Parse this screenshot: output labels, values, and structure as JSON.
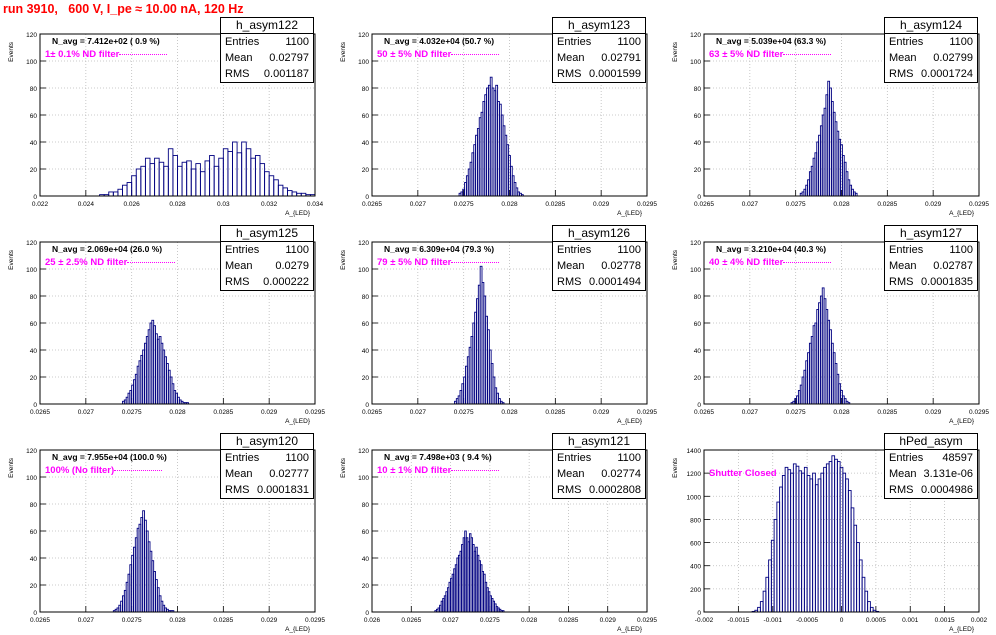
{
  "run_title": "run 3910,   600 V, I_pe ≈ 10.00 nA, 120 Hz",
  "stat_labels": {
    "entries": "Entries",
    "mean": "Mean",
    "rms": "RMS"
  },
  "axis_labels": {
    "y": "Events",
    "x": "A_{LED}"
  },
  "colors": {
    "hist": "#000080",
    "filter": "#ff00ff",
    "title": "#ff0000",
    "grid": "#bbbbbb"
  },
  "chart_data": [
    {
      "type": "bar",
      "name": "h_asym122",
      "navg": "N_avg = 7.412e+02 ( 0.9 %)",
      "filter": "1± 0.1% ND filter",
      "entries": "1100",
      "mean": "0.02797",
      "rms": "0.001187",
      "xlim": [
        0.022,
        0.034
      ],
      "ylim": [
        0,
        120
      ],
      "xticks": [
        0.022,
        0.024,
        0.026,
        0.028,
        0.03,
        0.032,
        0.034
      ],
      "xticklabels": [
        "0.022",
        "0.024",
        "0.026",
        "0.028",
        "0.03",
        "0.032",
        "0.034"
      ],
      "yticks": [
        0,
        20,
        40,
        60,
        80,
        100,
        120
      ],
      "bin_lo": 0.0246,
      "bin_w": 0.0002,
      "values": [
        1,
        1,
        3,
        3,
        5,
        8,
        10,
        15,
        20,
        22,
        28,
        24,
        28,
        25,
        22,
        35,
        30,
        22,
        25,
        26,
        20,
        24,
        18,
        26,
        30,
        22,
        28,
        35,
        33,
        40,
        32,
        40,
        35,
        28,
        30,
        24,
        18,
        15,
        12,
        8,
        6,
        4,
        3,
        2,
        2,
        1,
        1
      ]
    },
    {
      "type": "bar",
      "name": "h_asym123",
      "navg": "N_avg = 4.032e+04 (50.7 %)",
      "filter": "50 ± 5% ND filter",
      "entries": "1100",
      "mean": "0.02791",
      "rms": "0.0001599",
      "xlim": [
        0.0265,
        0.0295
      ],
      "ylim": [
        0,
        120
      ],
      "xticks": [
        0.0265,
        0.027,
        0.0275,
        0.028,
        0.0285,
        0.029,
        0.0295
      ],
      "xticklabels": [
        "0.0265",
        "0.027",
        "0.0275",
        "0.028",
        "0.0285",
        "0.029",
        "0.0295"
      ],
      "yticks": [
        0,
        20,
        40,
        60,
        80,
        100,
        120
      ],
      "bin_lo": 0.02745,
      "bin_w": 2e-05,
      "values": [
        2,
        3,
        5,
        10,
        15,
        20,
        25,
        32,
        38,
        45,
        50,
        58,
        62,
        70,
        75,
        80,
        82,
        88,
        80,
        78,
        82,
        70,
        68,
        60,
        52,
        45,
        38,
        30,
        22,
        15,
        10,
        6,
        3,
        2,
        1
      ]
    },
    {
      "type": "bar",
      "name": "h_asym124",
      "navg": "N_avg = 5.039e+04 (63.3 %)",
      "filter": "63 ± 5% ND filter",
      "entries": "1100",
      "mean": "0.02799",
      "rms": "0.0001724",
      "xlim": [
        0.0265,
        0.0295
      ],
      "ylim": [
        0,
        120
      ],
      "xticks": [
        0.0265,
        0.027,
        0.0275,
        0.028,
        0.0285,
        0.029,
        0.0295
      ],
      "xticklabels": [
        "0.0265",
        "0.027",
        "0.0275",
        "0.028",
        "0.0285",
        "0.029",
        "0.0295"
      ],
      "yticks": [
        0,
        20,
        40,
        60,
        80,
        100,
        120
      ],
      "bin_lo": 0.02755,
      "bin_w": 2e-05,
      "values": [
        2,
        3,
        5,
        8,
        12,
        18,
        22,
        28,
        32,
        40,
        45,
        52,
        60,
        65,
        75,
        85,
        80,
        70,
        62,
        55,
        48,
        42,
        38,
        30,
        25,
        18,
        12,
        8,
        5,
        3,
        2
      ]
    },
    {
      "type": "bar",
      "name": "h_asym125",
      "navg": "N_avg = 2.069e+04 (26.0 %)",
      "filter": "25 ± 2.5% ND filter",
      "entries": "1100",
      "mean": "0.0279",
      "rms": "0.000222",
      "xlim": [
        0.0265,
        0.0295
      ],
      "ylim": [
        0,
        120
      ],
      "xticks": [
        0.0265,
        0.027,
        0.0275,
        0.028,
        0.0285,
        0.029,
        0.0295
      ],
      "xticklabels": [
        "0.0265",
        "0.027",
        "0.0275",
        "0.028",
        "0.0285",
        "0.029",
        "0.0295"
      ],
      "yticks": [
        0,
        20,
        40,
        60,
        80,
        100,
        120
      ],
      "bin_lo": 0.0274,
      "bin_w": 2e-05,
      "values": [
        2,
        3,
        5,
        8,
        10,
        14,
        18,
        22,
        28,
        32,
        36,
        40,
        45,
        50,
        55,
        60,
        62,
        58,
        52,
        48,
        50,
        45,
        40,
        35,
        30,
        25,
        20,
        15,
        10,
        8,
        5,
        3,
        2,
        1,
        1,
        1
      ]
    },
    {
      "type": "bar",
      "name": "h_asym126",
      "navg": "N_avg = 6.309e+04 (79.3 %)",
      "filter": "79 ± 5% ND filter",
      "entries": "1100",
      "mean": "0.02778",
      "rms": "0.0001494",
      "xlim": [
        0.0265,
        0.0295
      ],
      "ylim": [
        0,
        120
      ],
      "xticks": [
        0.0265,
        0.027,
        0.0275,
        0.028,
        0.0285,
        0.029,
        0.0295
      ],
      "xticklabels": [
        "0.0265",
        "0.027",
        "0.0275",
        "0.028",
        "0.0285",
        "0.029",
        "0.0295"
      ],
      "yticks": [
        0,
        20,
        40,
        60,
        80,
        100,
        120
      ],
      "bin_lo": 0.0274,
      "bin_w": 2e-05,
      "values": [
        2,
        4,
        6,
        10,
        15,
        20,
        28,
        35,
        42,
        50,
        60,
        68,
        78,
        88,
        102,
        90,
        80,
        65,
        55,
        40,
        30,
        20,
        12,
        8,
        4,
        2,
        1
      ]
    },
    {
      "type": "bar",
      "name": "h_asym127",
      "navg": "N_avg = 3.210e+04 (40.3 %)",
      "filter": "40 ± 4% ND filter",
      "entries": "1100",
      "mean": "0.02787",
      "rms": "0.0001835",
      "xlim": [
        0.0265,
        0.0295
      ],
      "ylim": [
        0,
        120
      ],
      "xticks": [
        0.0265,
        0.027,
        0.0275,
        0.028,
        0.0285,
        0.029,
        0.0295
      ],
      "xticklabels": [
        "0.0265",
        "0.027",
        "0.0275",
        "0.028",
        "0.0285",
        "0.029",
        "0.0295"
      ],
      "yticks": [
        0,
        20,
        40,
        60,
        80,
        100,
        120
      ],
      "bin_lo": 0.02745,
      "bin_w": 2e-05,
      "values": [
        1,
        2,
        4,
        6,
        10,
        14,
        20,
        25,
        32,
        38,
        45,
        50,
        58,
        60,
        70,
        75,
        80,
        86,
        78,
        70,
        62,
        55,
        45,
        38,
        30,
        22,
        15,
        10,
        6,
        4,
        2,
        1
      ]
    },
    {
      "type": "bar",
      "name": "h_asym120",
      "navg": "N_avg = 7.955e+04 (100.0 %)",
      "filter": "100% (No filter)",
      "entries": "1100",
      "mean": "0.02777",
      "rms": "0.0001831",
      "xlim": [
        0.0265,
        0.0295
      ],
      "ylim": [
        0,
        120
      ],
      "xticks": [
        0.0265,
        0.027,
        0.0275,
        0.028,
        0.0285,
        0.029,
        0.0295
      ],
      "xticklabels": [
        "0.0265",
        "0.027",
        "0.0275",
        "0.028",
        "0.0285",
        "0.029",
        "0.0295"
      ],
      "yticks": [
        0,
        20,
        40,
        60,
        80,
        100,
        120
      ],
      "bin_lo": 0.0273,
      "bin_w": 2e-05,
      "values": [
        1,
        2,
        3,
        5,
        8,
        12,
        16,
        22,
        28,
        35,
        42,
        48,
        55,
        62,
        65,
        70,
        75,
        68,
        60,
        52,
        45,
        38,
        30,
        24,
        18,
        12,
        8,
        5,
        3,
        2,
        1,
        1,
        1
      ]
    },
    {
      "type": "bar",
      "name": "h_asym121",
      "navg": "N_avg = 7.498e+03 ( 9.4 %)",
      "filter": "10 ± 1% ND filter",
      "entries": "1100",
      "mean": "0.02774",
      "rms": "0.0002808",
      "xlim": [
        0.026,
        0.0295
      ],
      "ylim": [
        0,
        120
      ],
      "xticks": [
        0.026,
        0.0265,
        0.027,
        0.0275,
        0.028,
        0.0285,
        0.029,
        0.0295
      ],
      "xticklabels": [
        "0.026",
        "0.0265",
        "0.027",
        "0.0275",
        "0.028",
        "0.0285",
        "0.029",
        "0.0295"
      ],
      "yticks": [
        0,
        20,
        40,
        60,
        80,
        100,
        120
      ],
      "bin_lo": 0.0268,
      "bin_w": 2e-05,
      "values": [
        1,
        2,
        3,
        5,
        8,
        10,
        12,
        15,
        18,
        22,
        25,
        28,
        32,
        35,
        40,
        42,
        45,
        50,
        55,
        60,
        55,
        52,
        58,
        55,
        50,
        45,
        48,
        42,
        38,
        35,
        30,
        28,
        22,
        18,
        15,
        12,
        10,
        8,
        6,
        4,
        3,
        2,
        1,
        1
      ]
    },
    {
      "type": "bar",
      "name": "hPed_asym",
      "navg": "",
      "filter": "Shutter Closed",
      "entries": "48597",
      "mean": "3.131e-06",
      "rms": "0.0004986",
      "xlim": [
        -0.002,
        0.002
      ],
      "ylim": [
        0,
        1400
      ],
      "xticks": [
        -0.002,
        -0.0015,
        -0.001,
        -0.0005,
        0,
        0.0005,
        0.001,
        0.0015,
        0.002
      ],
      "xticklabels": [
        "-0.002",
        "-0.0015",
        "-0.001",
        "-0.0005",
        "0",
        "0.0005",
        "0.001",
        "0.0015",
        "0.002"
      ],
      "yticks": [
        0,
        200,
        400,
        600,
        800,
        1000,
        1200,
        1400
      ],
      "bin_lo": -0.0013,
      "bin_w": 4e-05,
      "values": [
        5,
        15,
        40,
        90,
        180,
        300,
        450,
        620,
        800,
        950,
        1080,
        1180,
        1250,
        1230,
        1200,
        1280,
        1260,
        1220,
        1200,
        1250,
        1180,
        1150,
        1200,
        1100,
        1150,
        1200,
        1250,
        1280,
        1300,
        1350,
        1320,
        1300,
        1250,
        1200,
        1150,
        1050,
        900,
        750,
        600,
        450,
        300,
        180,
        90,
        40,
        15,
        5
      ]
    }
  ]
}
